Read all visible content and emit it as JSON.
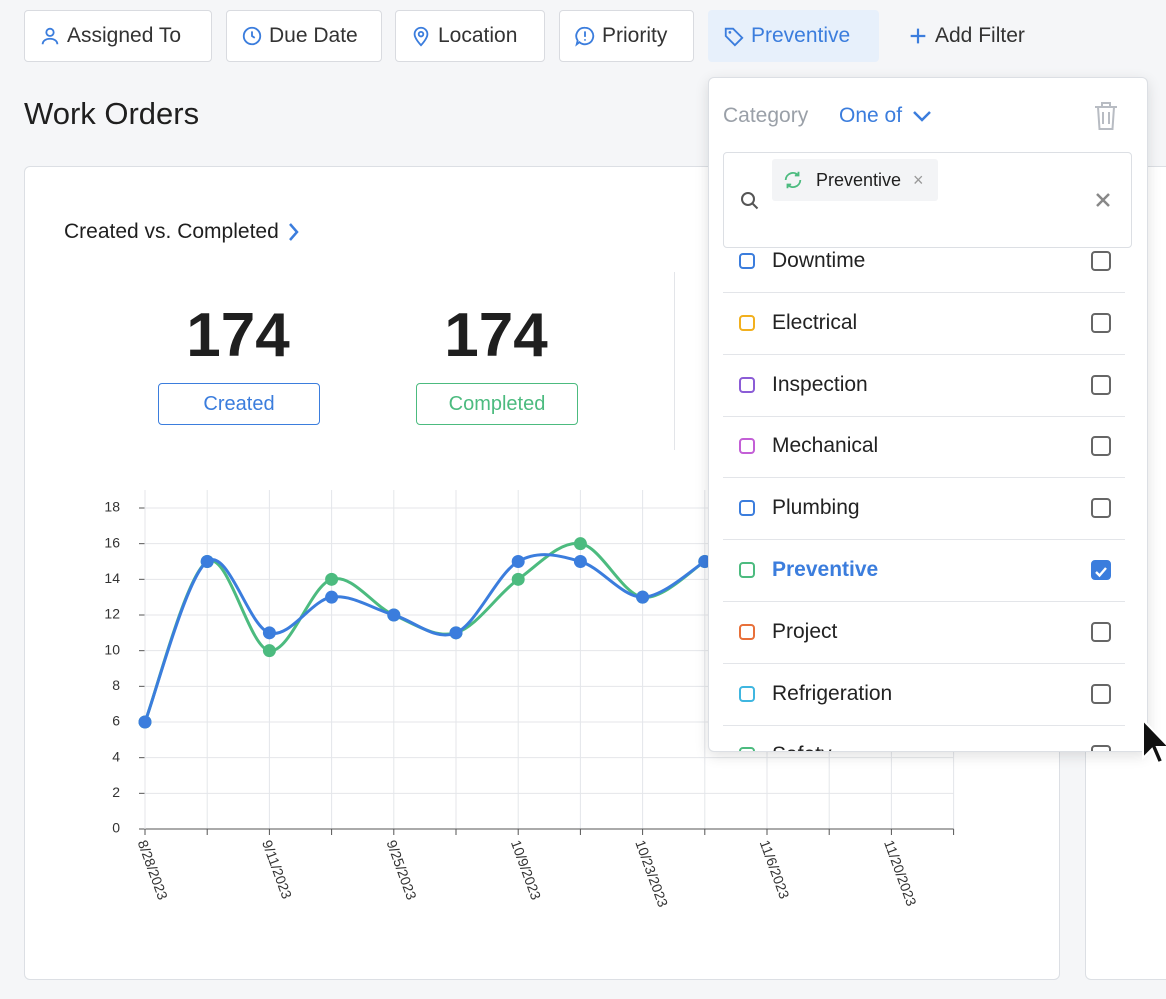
{
  "filters": [
    "Assigned To",
    "Due Date",
    "Location",
    "Priority",
    "Preventive",
    "Add Filter"
  ],
  "page_title": "Work Orders",
  "card": {
    "title": "Created vs. Completed",
    "stats": [
      {
        "value": 174,
        "label": "Created"
      },
      {
        "value": 174,
        "label": "Completed"
      }
    ]
  },
  "chart_data": {
    "type": "line",
    "categories": [
      "8/28/2023",
      null,
      "9/11/2023",
      null,
      "9/25/2023",
      null,
      "10/9/2023",
      null,
      "10/23/2023",
      null,
      "11/6/2023",
      null,
      "11/20/2023",
      null
    ],
    "series": [
      {
        "name": "Completed",
        "color": "#4cbb7f",
        "values": [
          6,
          15,
          10,
          14,
          12,
          11,
          14,
          16,
          13,
          15,
          null,
          null,
          null,
          null
        ]
      },
      {
        "name": "Created",
        "color": "#3b7ddd",
        "values": [
          6,
          15,
          11,
          13,
          12,
          11,
          15,
          15,
          13,
          15,
          null,
          null,
          null,
          null
        ]
      }
    ],
    "ylim": [
      0,
      18
    ],
    "yticks": [
      0,
      2,
      4,
      6,
      8,
      10,
      12,
      14,
      16,
      18
    ],
    "grid": true
  },
  "dropdown": {
    "field": "Category",
    "operator": "One of",
    "selected": [
      "Preventive"
    ],
    "options": [
      {
        "label": "Downtime",
        "checked": false
      },
      {
        "label": "Electrical",
        "checked": false
      },
      {
        "label": "Inspection",
        "checked": false
      },
      {
        "label": "Mechanical",
        "checked": false
      },
      {
        "label": "Plumbing",
        "checked": false
      },
      {
        "label": "Preventive",
        "checked": true
      },
      {
        "label": "Project",
        "checked": false
      },
      {
        "label": "Refrigeration",
        "checked": false
      },
      {
        "label": "Safety",
        "checked": false
      }
    ]
  }
}
